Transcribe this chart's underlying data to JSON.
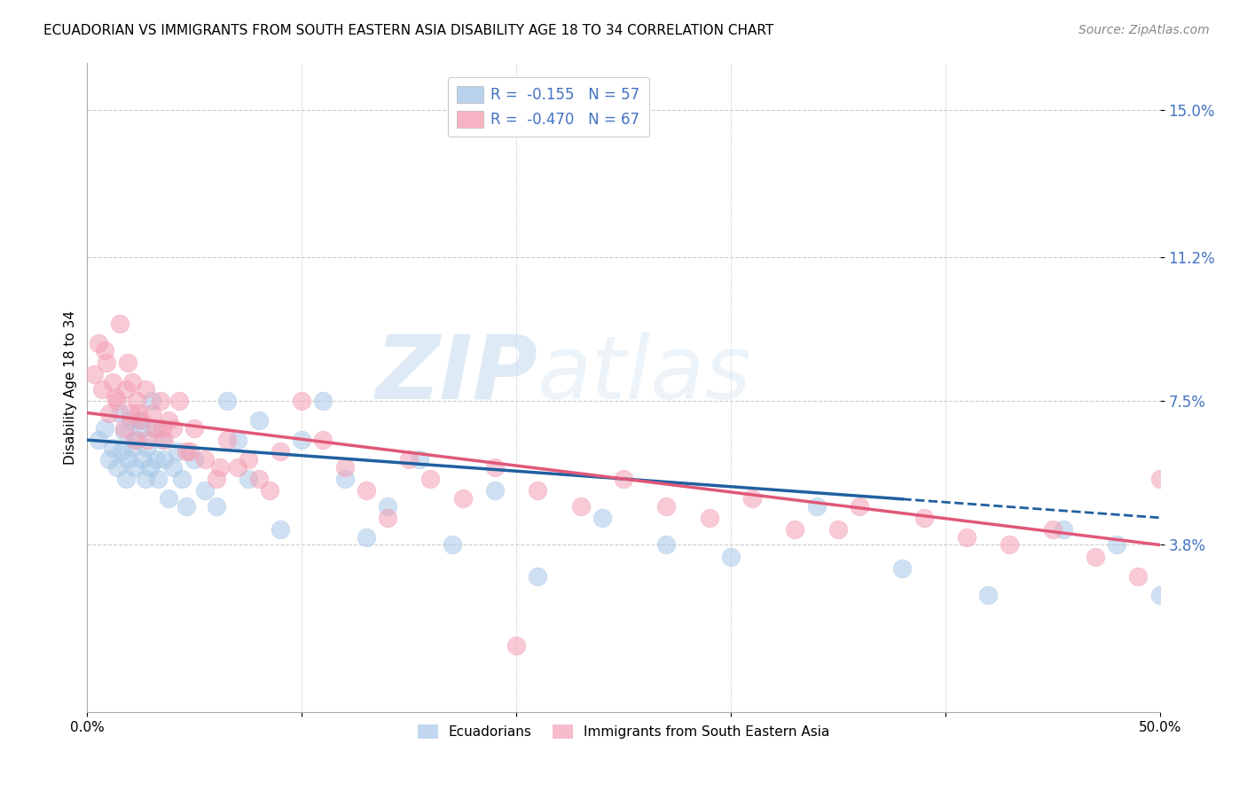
{
  "title": "ECUADORIAN VS IMMIGRANTS FROM SOUTH EASTERN ASIA DISABILITY AGE 18 TO 34 CORRELATION CHART",
  "source": "Source: ZipAtlas.com",
  "ylabel": "Disability Age 18 to 34",
  "xlim": [
    0.0,
    0.5
  ],
  "ylim": [
    -0.005,
    0.162
  ],
  "yticks": [
    0.038,
    0.075,
    0.112,
    0.15
  ],
  "ytick_labels": [
    "3.8%",
    "7.5%",
    "11.2%",
    "15.0%"
  ],
  "xticks": [
    0.0,
    0.1,
    0.2,
    0.3,
    0.4,
    0.5
  ],
  "xtick_labels": [
    "0.0%",
    "",
    "",
    "",
    "",
    "50.0%"
  ],
  "legend_R1": "R =  -0.155",
  "legend_N1": "N = 57",
  "legend_R2": "R =  -0.470",
  "legend_N2": "N = 67",
  "blue_color": "#a8c8e8",
  "pink_color": "#f4a0b5",
  "blue_line_color": "#2060a0",
  "pink_line_color": "#e05878",
  "watermark_zip": "ZIP",
  "watermark_atlas": "atlas",
  "background_color": "#ffffff",
  "grid_color": "#cccccc",
  "title_fontsize": 11,
  "blue_scatter_x": [
    0.005,
    0.008,
    0.01,
    0.012,
    0.014,
    0.015,
    0.016,
    0.017,
    0.018,
    0.019,
    0.02,
    0.021,
    0.022,
    0.023,
    0.024,
    0.025,
    0.026,
    0.027,
    0.028,
    0.029,
    0.03,
    0.031,
    0.032,
    0.033,
    0.035,
    0.036,
    0.038,
    0.04,
    0.042,
    0.044,
    0.046,
    0.05,
    0.055,
    0.06,
    0.065,
    0.07,
    0.075,
    0.08,
    0.09,
    0.1,
    0.11,
    0.12,
    0.13,
    0.14,
    0.155,
    0.17,
    0.19,
    0.21,
    0.24,
    0.27,
    0.3,
    0.34,
    0.38,
    0.42,
    0.455,
    0.48,
    0.5
  ],
  "blue_scatter_y": [
    0.065,
    0.068,
    0.06,
    0.063,
    0.058,
    0.072,
    0.062,
    0.067,
    0.055,
    0.06,
    0.07,
    0.063,
    0.058,
    0.065,
    0.07,
    0.068,
    0.06,
    0.055,
    0.063,
    0.058,
    0.075,
    0.068,
    0.06,
    0.055,
    0.065,
    0.06,
    0.05,
    0.058,
    0.062,
    0.055,
    0.048,
    0.06,
    0.052,
    0.048,
    0.075,
    0.065,
    0.055,
    0.07,
    0.042,
    0.065,
    0.075,
    0.055,
    0.04,
    0.048,
    0.06,
    0.038,
    0.052,
    0.03,
    0.045,
    0.038,
    0.035,
    0.048,
    0.032,
    0.025,
    0.042,
    0.038,
    0.025
  ],
  "pink_scatter_x": [
    0.003,
    0.005,
    0.007,
    0.009,
    0.01,
    0.012,
    0.014,
    0.015,
    0.017,
    0.018,
    0.019,
    0.02,
    0.021,
    0.022,
    0.023,
    0.025,
    0.027,
    0.028,
    0.03,
    0.032,
    0.034,
    0.036,
    0.038,
    0.04,
    0.043,
    0.046,
    0.05,
    0.055,
    0.06,
    0.065,
    0.07,
    0.075,
    0.08,
    0.09,
    0.1,
    0.11,
    0.12,
    0.13,
    0.15,
    0.16,
    0.175,
    0.19,
    0.21,
    0.23,
    0.25,
    0.27,
    0.29,
    0.31,
    0.33,
    0.36,
    0.39,
    0.41,
    0.43,
    0.45,
    0.47,
    0.49,
    0.5,
    0.008,
    0.013,
    0.024,
    0.035,
    0.048,
    0.062,
    0.085,
    0.14,
    0.2,
    0.35
  ],
  "pink_scatter_y": [
    0.082,
    0.09,
    0.078,
    0.085,
    0.072,
    0.08,
    0.075,
    0.095,
    0.068,
    0.078,
    0.085,
    0.072,
    0.08,
    0.065,
    0.075,
    0.07,
    0.078,
    0.065,
    0.072,
    0.068,
    0.075,
    0.065,
    0.07,
    0.068,
    0.075,
    0.062,
    0.068,
    0.06,
    0.055,
    0.065,
    0.058,
    0.06,
    0.055,
    0.062,
    0.075,
    0.065,
    0.058,
    0.052,
    0.06,
    0.055,
    0.05,
    0.058,
    0.052,
    0.048,
    0.055,
    0.048,
    0.045,
    0.05,
    0.042,
    0.048,
    0.045,
    0.04,
    0.038,
    0.042,
    0.035,
    0.03,
    0.055,
    0.088,
    0.076,
    0.072,
    0.068,
    0.062,
    0.058,
    0.052,
    0.045,
    0.012,
    0.042
  ],
  "blue_line_x0": 0.0,
  "blue_line_x1": 0.5,
  "blue_line_y0": 0.065,
  "blue_line_y1": 0.045,
  "blue_line_solid_x1": 0.38,
  "pink_line_x0": 0.0,
  "pink_line_x1": 0.5,
  "pink_line_y0": 0.072,
  "pink_line_y1": 0.038
}
